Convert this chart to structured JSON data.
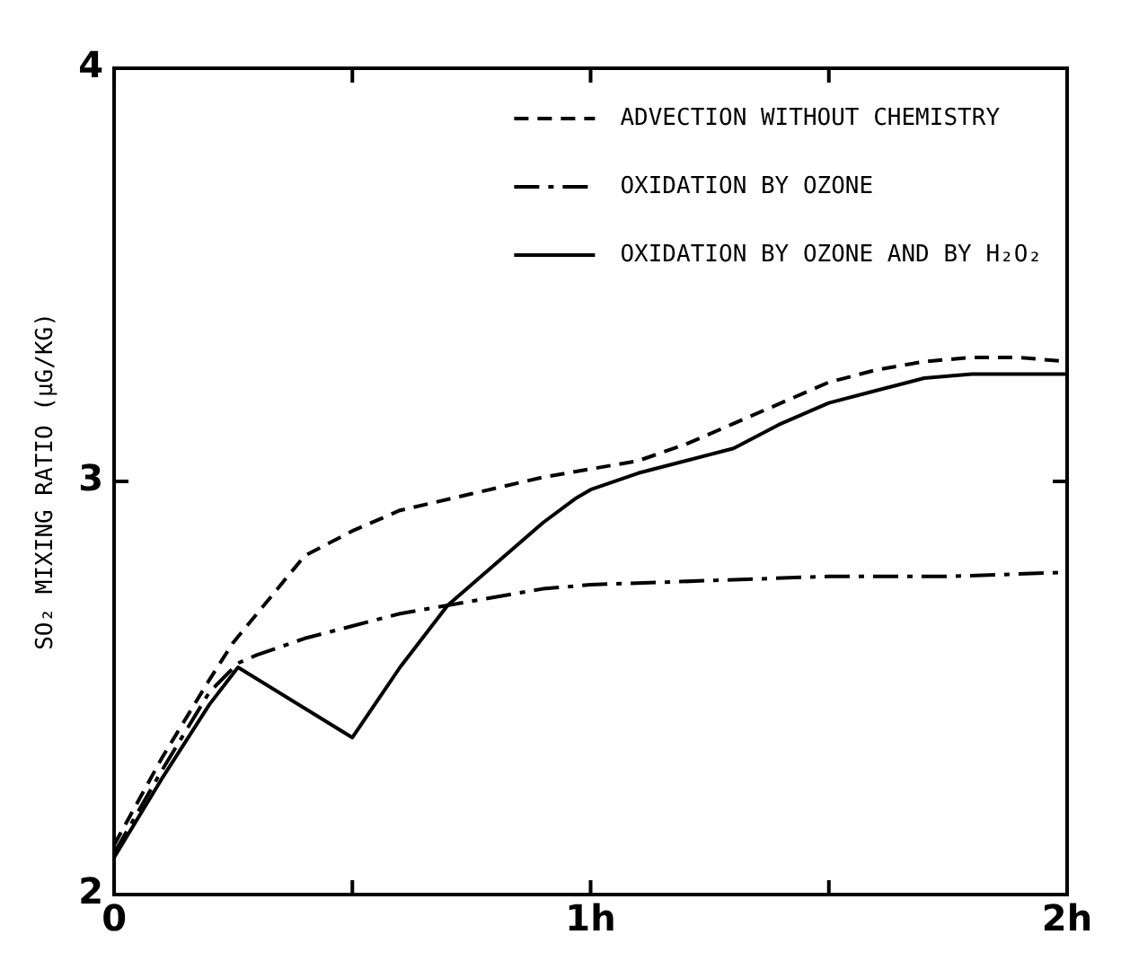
{
  "chart_data": {
    "type": "line",
    "xlabel": null,
    "ylabel": "SO₂ MIXING RATIO (μG/KG)",
    "xlim": [
      0,
      2
    ],
    "xticks": [
      0,
      {
        "value": 0.5,
        "label": null
      },
      {
        "value": 1,
        "label": "1h"
      },
      {
        "value": 1.5,
        "label": null
      },
      {
        "value": 2,
        "label": "2h"
      }
    ],
    "ylim": [
      2,
      4
    ],
    "yticks": [
      2,
      3,
      4
    ],
    "grid": false,
    "legend": "top right",
    "marker": "none",
    "series": [
      {
        "name": "ADVECTION WITHOUT CHEMISTRY",
        "color": "#000000",
        "line_style": "dashed",
        "x": [
          0,
          0.1,
          0.2,
          0.25,
          0.3,
          0.4,
          0.5,
          0.6,
          0.75,
          0.9,
          1.0,
          1.1,
          1.2,
          1.3,
          1.4,
          1.5,
          1.6,
          1.7,
          1.8,
          1.9,
          2.0
        ],
        "values": [
          2.12,
          2.33,
          2.52,
          2.61,
          2.68,
          2.82,
          2.88,
          2.93,
          2.97,
          3.01,
          3.03,
          3.05,
          3.09,
          3.14,
          3.19,
          3.24,
          3.27,
          3.29,
          3.3,
          3.3,
          3.29
        ]
      },
      {
        "name": "OXIDATION BY OZONE",
        "color": "#000000",
        "line_style": "dashdot",
        "x": [
          0,
          0.1,
          0.2,
          0.26,
          0.3,
          0.4,
          0.5,
          0.6,
          0.75,
          0.9,
          1.0,
          1.25,
          1.5,
          1.75,
          2.0
        ],
        "values": [
          2.1,
          2.3,
          2.49,
          2.56,
          2.58,
          2.62,
          2.65,
          2.68,
          2.71,
          2.74,
          2.75,
          2.76,
          2.77,
          2.77,
          2.78
        ]
      },
      {
        "name": "OXIDATION BY OZONE AND BY H₂O₂",
        "color": "#000000",
        "line_style": "solid",
        "x": [
          0,
          0.1,
          0.2,
          0.26,
          0.5,
          0.6,
          0.7,
          0.75,
          0.8,
          0.9,
          0.97,
          1.0,
          1.1,
          1.2,
          1.3,
          1.4,
          1.5,
          1.6,
          1.7,
          1.8,
          2.0
        ],
        "values": [
          2.09,
          2.28,
          2.46,
          2.55,
          2.38,
          2.55,
          2.7,
          2.75,
          2.8,
          2.9,
          2.96,
          2.98,
          3.02,
          3.05,
          3.08,
          3.14,
          3.19,
          3.22,
          3.25,
          3.26,
          3.26
        ]
      }
    ]
  }
}
